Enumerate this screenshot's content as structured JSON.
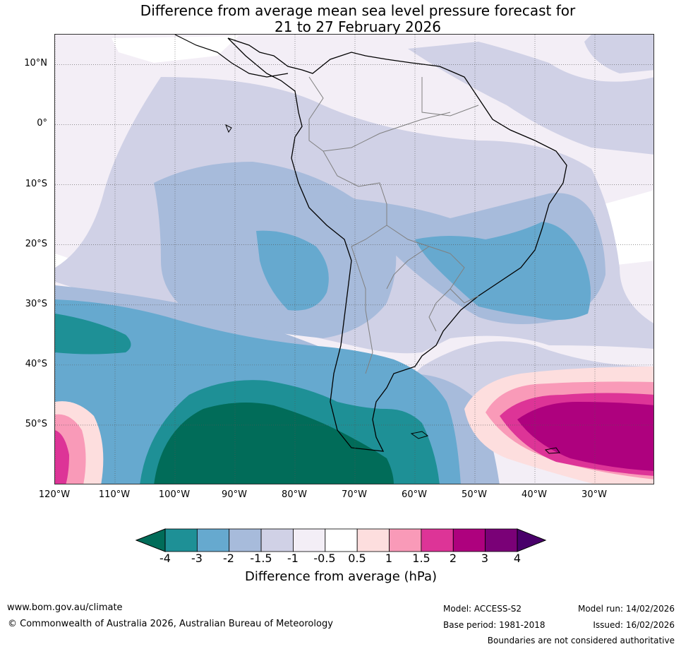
{
  "title": {
    "line1": "Difference from average mean sea level pressure forecast for",
    "line2": "21 to 27 February 2026"
  },
  "map": {
    "lat_labels": [
      "10°N",
      "0°",
      "10°S",
      "20°S",
      "30°S",
      "40°S",
      "50°S"
    ],
    "lon_labels": [
      "120°W",
      "110°W",
      "100°W",
      "90°W",
      "80°W",
      "70°W",
      "60°W",
      "50°W",
      "40°W",
      "30°W"
    ],
    "lat_values": [
      10,
      0,
      -10,
      -20,
      -30,
      -40,
      -50
    ],
    "lon_values": [
      -120,
      -110,
      -100,
      -90,
      -80,
      -70,
      -60,
      -50,
      -40,
      -30
    ],
    "lon_range": [
      -120,
      -20
    ],
    "lat_range": [
      -60,
      15
    ]
  },
  "colorbar": {
    "ticks": [
      "-4",
      "-3",
      "-2",
      "-1.5",
      "-1",
      "-0.5",
      "0.5",
      "1",
      "1.5",
      "2",
      "3",
      "4"
    ],
    "colors": [
      "#1e9096",
      "#66a9cf",
      "#a7bbdb",
      "#d0d1e6",
      "#f3eef6",
      "#ffffff",
      "#fddede",
      "#f99ab8",
      "#dd3497",
      "#ae017e",
      "#7a0177"
    ],
    "under_color": "#016c59",
    "over_color": "#49006a",
    "label": "Difference from average (hPa)"
  },
  "footer": {
    "website": "www.bom.gov.au/climate",
    "copyright": "© Commonwealth of Australia 2026, Australian Bureau of Meteorology",
    "model": "Model: ACCESS-S2",
    "base_period": "Base period: 1981-2018",
    "model_run": "Model run: 14/02/2026",
    "issued": "Issued: 16/02/2026",
    "disclaimer": "Boundaries are not considered authoritative"
  }
}
